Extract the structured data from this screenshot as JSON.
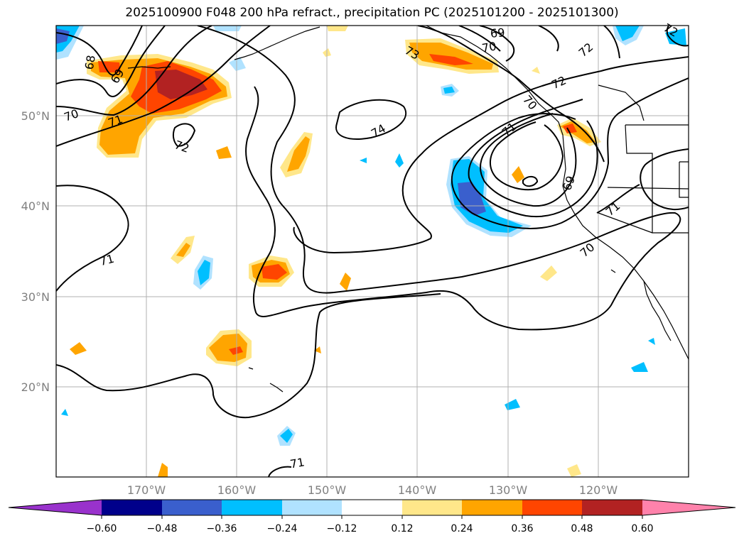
{
  "title": "2025100900 F048 200 hPa refract., precipitation PC (2025101200 - 2025101300)",
  "lat_labels": [
    "50°N",
    "40°N",
    "30°N",
    "20°N"
  ],
  "lon_labels": [
    "170°W",
    "160°W",
    "150°W",
    "140°W",
    "130°W",
    "120°W"
  ],
  "contour_labels": [
    "68",
    "69",
    "70",
    "71",
    "72",
    "74",
    "71",
    "73",
    "70",
    "69",
    "72",
    "70",
    "71",
    "69",
    "72",
    "71",
    "70",
    "71",
    "72"
  ],
  "colorbar": {
    "ticks": [
      "−0.60",
      "−0.48",
      "−0.36",
      "−0.24",
      "−0.12",
      "0.12",
      "0.24",
      "0.36",
      "0.48",
      "0.60"
    ],
    "colors": [
      "#9932CC",
      "#00008B",
      "#3A5FCD",
      "#00BFFF",
      "#B0E2FF",
      "#FFFFFF",
      "#FFE78A",
      "#FFA500",
      "#FF4500",
      "#B22222",
      "#FF82AB"
    ]
  },
  "colors": {
    "contour": "#000000",
    "grid": "#b0b0b0",
    "coast": "#000000"
  }
}
